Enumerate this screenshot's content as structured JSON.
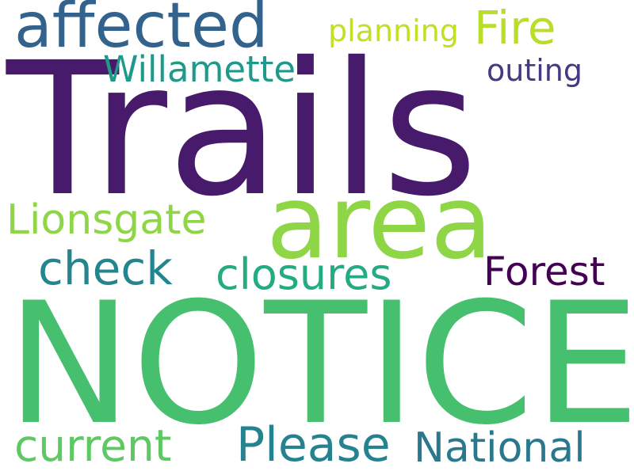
{
  "words": [
    {
      "text": "Trails",
      "color": "#481a6c"
    },
    {
      "text": "NOTICE",
      "color": "#46c06f"
    },
    {
      "text": "area",
      "color": "#8ed645"
    },
    {
      "text": "affected",
      "color": "#33638d"
    },
    {
      "text": "Fire",
      "color": "#b8de29"
    },
    {
      "text": "planning",
      "color": "#c2df23"
    },
    {
      "text": "Willamette",
      "color": "#1f9a8a"
    },
    {
      "text": "outing",
      "color": "#443983"
    },
    {
      "text": "Lionsgate",
      "color": "#8ed645"
    },
    {
      "text": "check",
      "color": "#25858e"
    },
    {
      "text": "closures",
      "color": "#25ab82"
    },
    {
      "text": "Forest",
      "color": "#440154"
    },
    {
      "text": "current",
      "color": "#5ec962"
    },
    {
      "text": "Please",
      "color": "#26828e"
    },
    {
      "text": "National",
      "color": "#2a788e"
    }
  ]
}
